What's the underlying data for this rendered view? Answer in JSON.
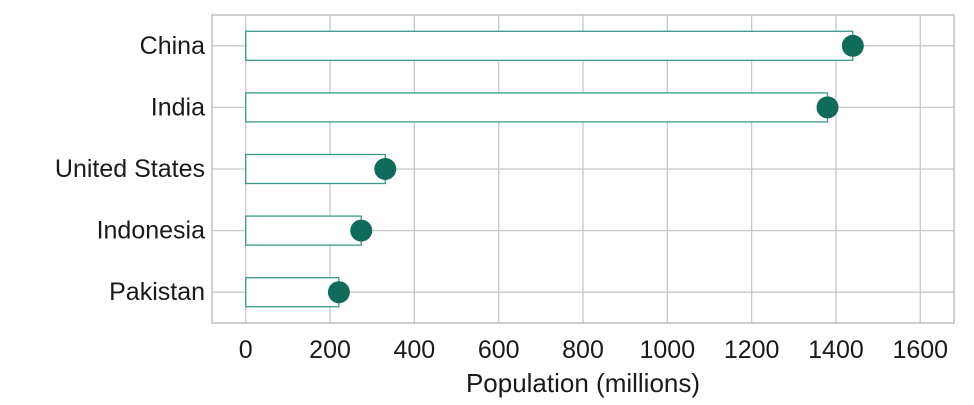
{
  "chart_data": {
    "type": "bar",
    "orientation": "horizontal",
    "style": "lollipop-bar",
    "title": "",
    "categories": [
      "China",
      "India",
      "United States",
      "Indonesia",
      "Pakistan"
    ],
    "values": [
      1440,
      1380,
      331,
      274,
      221
    ],
    "xlabel": "Population (millions)",
    "ylabel": "",
    "xlim": [
      -80,
      1680
    ],
    "xticks": [
      0,
      200,
      400,
      600,
      800,
      1000,
      1200,
      1400,
      1600
    ],
    "xtick_labels": [
      "0",
      "200",
      "400",
      "600",
      "800",
      "1000",
      "1200",
      "1400",
      "1600"
    ],
    "grid": true,
    "legend": "none",
    "colors": {
      "bar_stroke": "#3a9a8a",
      "bar_fill": "#ffffff",
      "point": "#0f6b5a",
      "grid": "#c8c8c8",
      "panel_border": "#b5b5b5"
    }
  }
}
